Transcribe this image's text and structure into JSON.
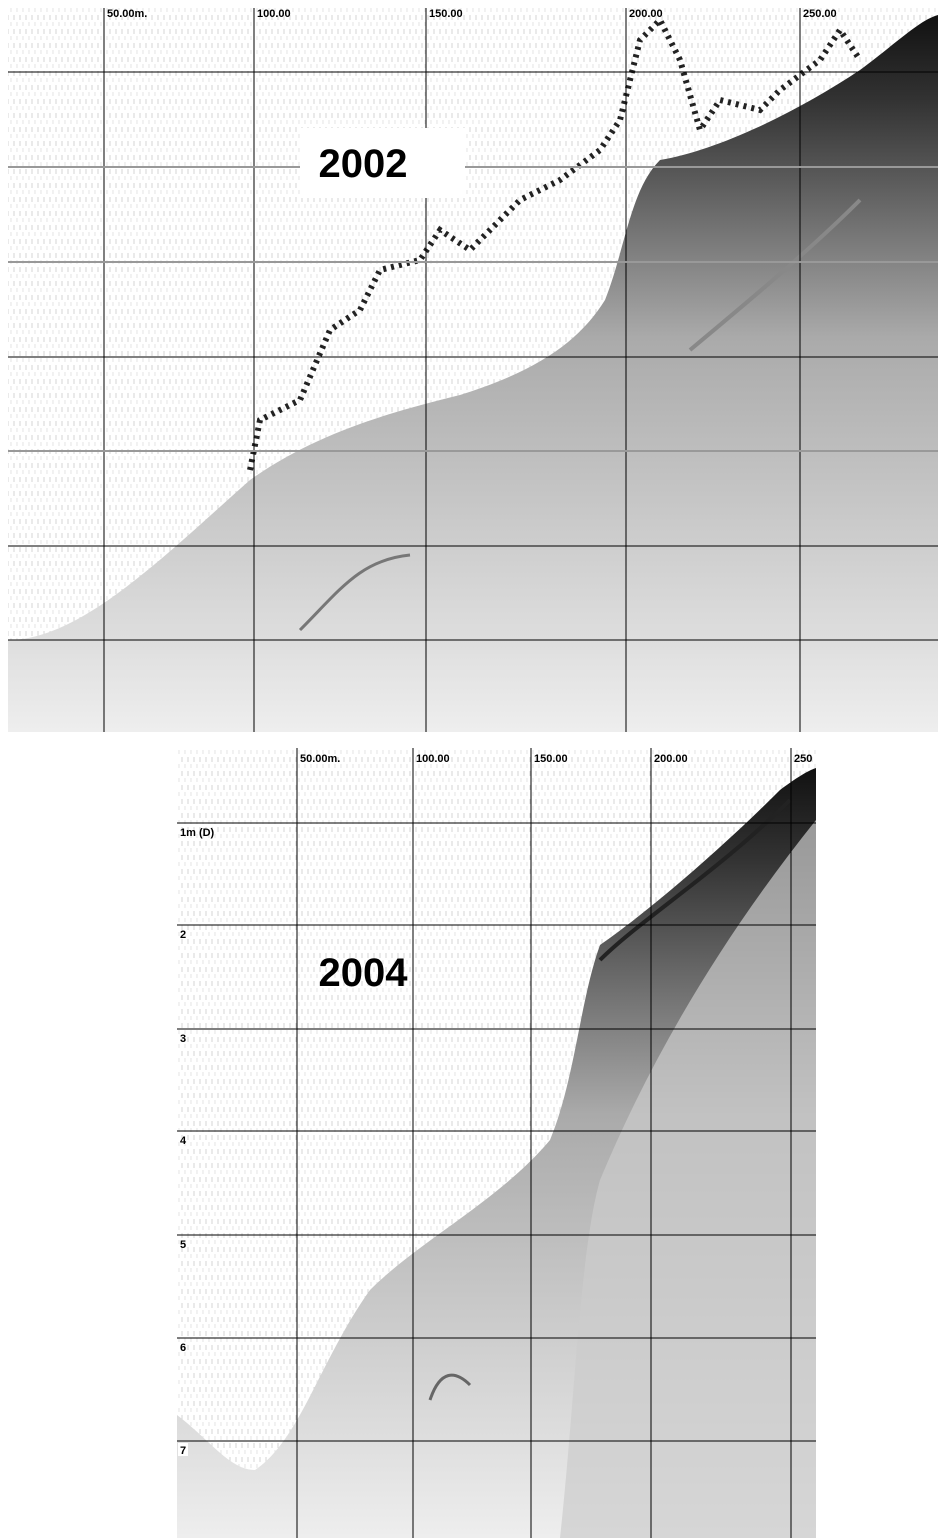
{
  "panels": [
    {
      "title": "2002",
      "x_labels": [
        "50.00m.",
        "100.00",
        "150.00",
        "200.00",
        "250.00"
      ]
    },
    {
      "title": "2004",
      "x_labels": [
        "50.00m.",
        "100.00",
        "150.00",
        "200.00",
        "250"
      ],
      "depth_labels": [
        "1m (D)",
        "2",
        "3",
        "4",
        "5",
        "6",
        "7"
      ]
    }
  ]
}
